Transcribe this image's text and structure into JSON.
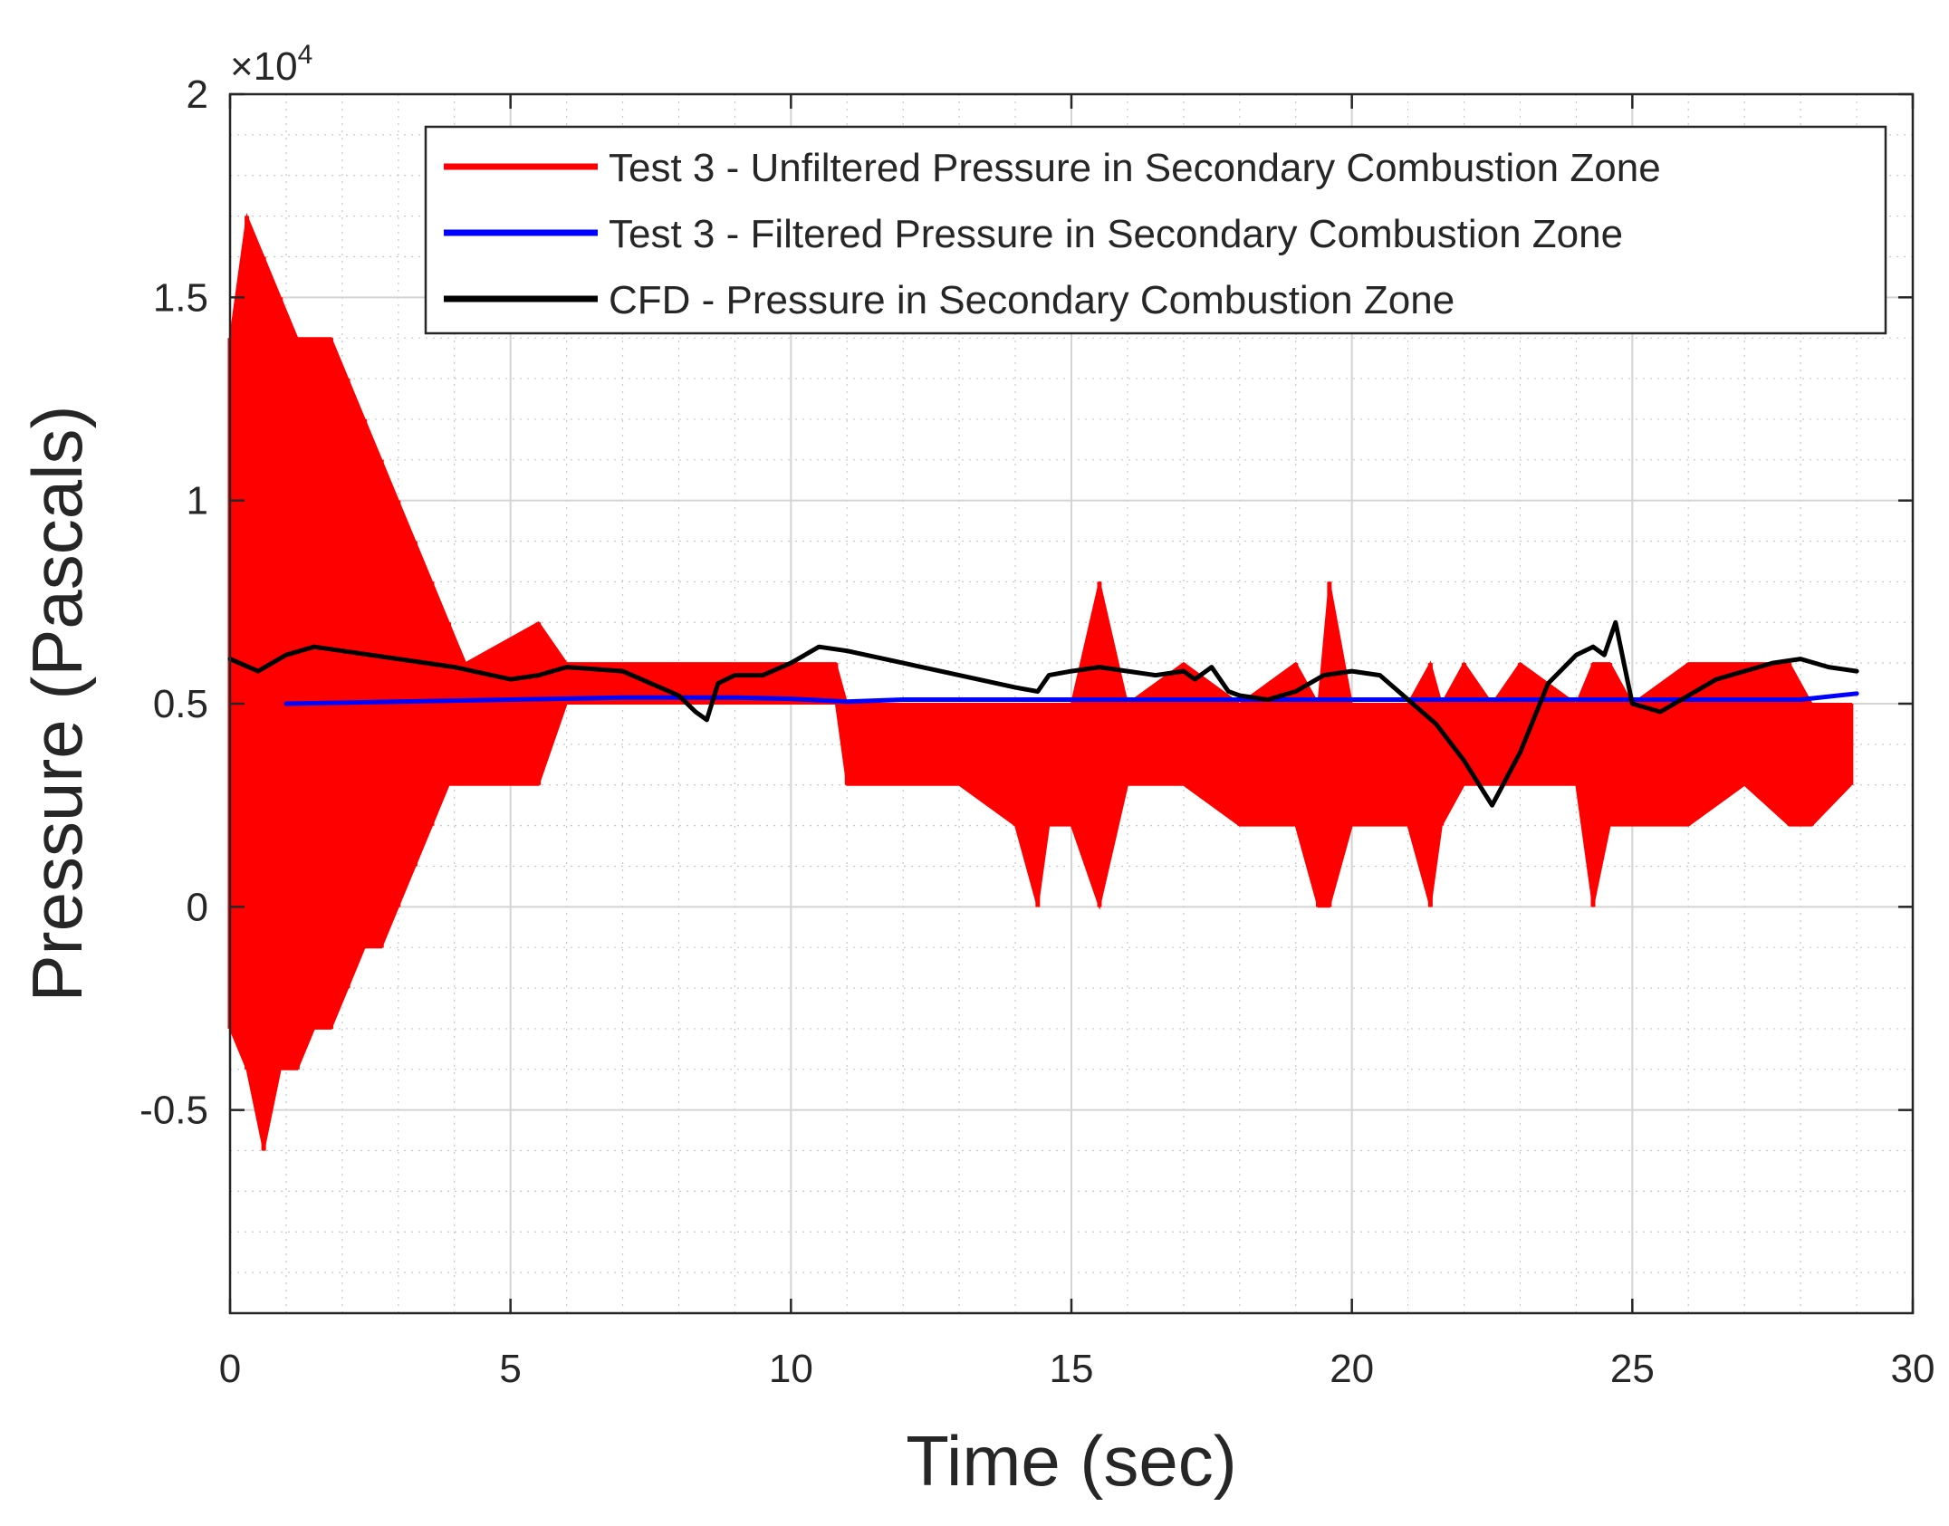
{
  "chart_data": {
    "type": "line",
    "title": "",
    "xlabel": "Time (sec)",
    "ylabel": "Pressure (Pascals)",
    "exponent_label": "×10",
    "exponent_power": "4",
    "xlim": [
      0,
      30
    ],
    "ylim": [
      -1,
      2
    ],
    "x_ticks": [
      0,
      5,
      10,
      15,
      20,
      25,
      30
    ],
    "x_tick_labels": [
      "0",
      "5",
      "10",
      "15",
      "20",
      "25",
      "30"
    ],
    "y_ticks": [
      -0.5,
      0,
      0.5,
      1,
      1.5,
      2
    ],
    "y_tick_labels": [
      "-0.5",
      "0",
      "0.5",
      "1",
      "1.5",
      "2"
    ],
    "grid": true,
    "minor_grid": true,
    "legend_position": "top-right",
    "series": [
      {
        "name": "Test 3 - Unfiltered Pressure in Secondary Combustion Zone",
        "color": "#ff0000",
        "style": "band",
        "x": [
          0,
          0.3,
          0.6,
          0.9,
          1.2,
          1.5,
          1.8,
          2.1,
          2.4,
          2.7,
          3.0,
          3.3,
          3.6,
          3.9,
          4.2,
          5.5,
          6.0,
          7.0,
          8.0,
          9.0,
          10.0,
          10.8,
          11.0,
          12.0,
          13.0,
          14.0,
          14.4,
          14.6,
          15.0,
          15.5,
          16.0,
          17.0,
          18.0,
          19.0,
          19.4,
          19.6,
          20.0,
          21.0,
          21.4,
          21.6,
          22.0,
          22.5,
          23.0,
          24.0,
          24.3,
          24.6,
          25.0,
          26.0,
          27.0,
          27.8,
          28.2,
          28.9
        ],
        "upper": [
          1.4,
          1.7,
          1.6,
          1.5,
          1.4,
          1.4,
          1.4,
          1.3,
          1.2,
          1.1,
          1.0,
          0.9,
          0.8,
          0.7,
          0.6,
          0.7,
          0.6,
          0.6,
          0.6,
          0.6,
          0.6,
          0.6,
          0.5,
          0.5,
          0.5,
          0.5,
          0.5,
          0.5,
          0.5,
          0.8,
          0.5,
          0.6,
          0.5,
          0.6,
          0.5,
          0.8,
          0.5,
          0.5,
          0.6,
          0.5,
          0.6,
          0.5,
          0.6,
          0.5,
          0.6,
          0.6,
          0.5,
          0.6,
          0.6,
          0.6,
          0.5,
          0.5
        ],
        "lower": [
          -0.3,
          -0.4,
          -0.6,
          -0.4,
          -0.4,
          -0.3,
          -0.3,
          -0.2,
          -0.1,
          -0.1,
          0.0,
          0.1,
          0.2,
          0.3,
          0.3,
          0.3,
          0.5,
          0.5,
          0.5,
          0.5,
          0.5,
          0.5,
          0.3,
          0.3,
          0.3,
          0.2,
          0.0,
          0.2,
          0.2,
          0.0,
          0.3,
          0.3,
          0.2,
          0.2,
          0.0,
          0.0,
          0.2,
          0.2,
          0.0,
          0.2,
          0.3,
          0.3,
          0.3,
          0.3,
          0.0,
          0.2,
          0.2,
          0.2,
          0.3,
          0.2,
          0.2,
          0.3
        ]
      },
      {
        "name": "Test 3 - Filtered Pressure in Secondary Combustion Zone",
        "color": "#0000ff",
        "style": "line",
        "x": [
          1.0,
          3.0,
          5.0,
          7.0,
          9.0,
          10.0,
          11.0,
          12.0,
          15.0,
          18.0,
          20.0,
          22.0,
          24.0,
          26.0,
          28.0,
          29.0
        ],
        "y": [
          0.5,
          0.505,
          0.51,
          0.515,
          0.515,
          0.512,
          0.505,
          0.51,
          0.51,
          0.51,
          0.51,
          0.51,
          0.51,
          0.51,
          0.51,
          0.525
        ]
      },
      {
        "name": "CFD - Pressure in Secondary Combustion Zone",
        "color": "#000000",
        "style": "line",
        "x": [
          0,
          0.5,
          1.0,
          1.5,
          2.0,
          3.0,
          4.0,
          5.0,
          5.5,
          6.0,
          7.0,
          7.5,
          8.0,
          8.3,
          8.5,
          8.7,
          9.0,
          9.5,
          10.0,
          10.5,
          11.0,
          12.0,
          13.0,
          14.0,
          14.4,
          14.6,
          15.0,
          15.5,
          16.0,
          16.5,
          17.0,
          17.2,
          17.5,
          17.8,
          18.0,
          18.5,
          19.0,
          19.5,
          20.0,
          20.5,
          21.0,
          21.5,
          22.0,
          22.5,
          23.0,
          23.5,
          24.0,
          24.3,
          24.5,
          24.7,
          25.0,
          25.5,
          26.0,
          26.5,
          27.0,
          27.5,
          28.0,
          28.5,
          29.0
        ],
        "y": [
          0.61,
          0.58,
          0.62,
          0.64,
          0.63,
          0.61,
          0.59,
          0.56,
          0.57,
          0.59,
          0.58,
          0.55,
          0.52,
          0.48,
          0.46,
          0.55,
          0.57,
          0.57,
          0.6,
          0.64,
          0.63,
          0.6,
          0.57,
          0.54,
          0.53,
          0.57,
          0.58,
          0.59,
          0.58,
          0.57,
          0.58,
          0.56,
          0.59,
          0.53,
          0.52,
          0.51,
          0.53,
          0.57,
          0.58,
          0.57,
          0.51,
          0.45,
          0.36,
          0.25,
          0.38,
          0.55,
          0.62,
          0.64,
          0.62,
          0.7,
          0.5,
          0.48,
          0.52,
          0.56,
          0.58,
          0.6,
          0.61,
          0.59,
          0.58
        ]
      }
    ]
  }
}
